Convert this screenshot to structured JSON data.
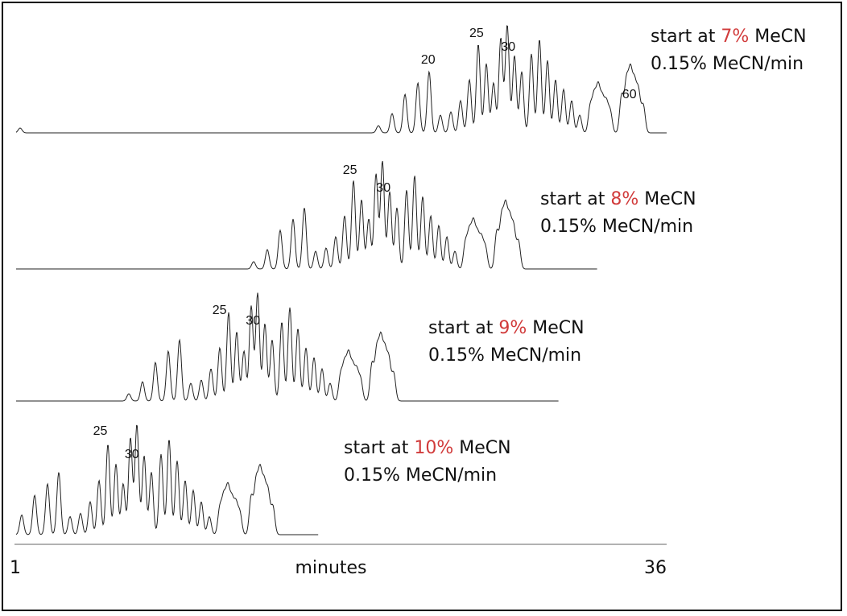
{
  "chart_data": {
    "type": "line",
    "x_axis": {
      "label": "minutes",
      "min_label": "1",
      "max_label": "36",
      "range": [
        1,
        36
      ]
    },
    "colors": {
      "trace": "#222222",
      "highlight": "#d13b3b",
      "text": "#111111"
    },
    "series": [
      {
        "condition": {
          "prefix": "start at ",
          "start_pct": "7%",
          "suffix": " MeCN",
          "gradient": "0.15% MeCN/min"
        },
        "peak_labels": [
          {
            "label": "20",
            "x": 23.2
          },
          {
            "label": "25",
            "x": 25.8
          },
          {
            "label": "30",
            "x": 27.5
          },
          {
            "label": "60",
            "x": 34.0
          }
        ],
        "end_x": 36.0
      },
      {
        "condition": {
          "prefix": "start at ",
          "start_pct": "8%",
          "suffix": " MeCN",
          "gradient": "0.15% MeCN/min"
        },
        "peak_labels": [
          {
            "label": "25",
            "x": 19.0
          },
          {
            "label": "30",
            "x": 20.8
          }
        ],
        "end_x": 32.3
      },
      {
        "condition": {
          "prefix": "start at ",
          "start_pct": "9%",
          "suffix": " MeCN",
          "gradient": "0.15% MeCN/min"
        },
        "peak_labels": [
          {
            "label": "25",
            "x": 12.0
          },
          {
            "label": "30",
            "x": 13.8
          }
        ],
        "end_x": 30.2
      },
      {
        "condition": {
          "prefix": "start at ",
          "start_pct": "10%",
          "suffix": " MeCN",
          "gradient": "0.15% MeCN/min"
        },
        "peak_labels": [
          {
            "label": "25",
            "x": 5.6
          },
          {
            "label": "30",
            "x": 7.3
          }
        ],
        "end_x": 17.3
      }
    ]
  }
}
